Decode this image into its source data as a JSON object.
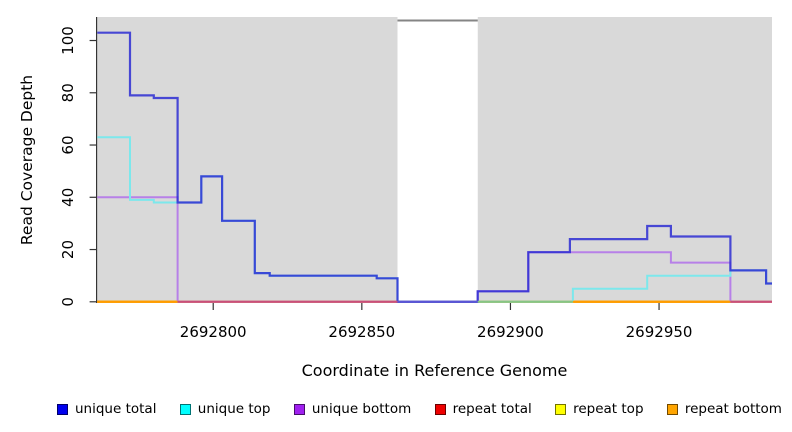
{
  "chart_data": {
    "type": "step-line",
    "title": "",
    "xlabel": "Coordinate in Reference Genome",
    "ylabel": "Read Coverage Depth",
    "xlim": [
      2692761,
      2692988
    ],
    "ylim": [
      0,
      109
    ],
    "xticks": [
      2692800,
      2692850,
      2692900,
      2692950
    ],
    "yticks": [
      0,
      20,
      40,
      60,
      80,
      100
    ],
    "plot_bg": "#d9d9d9",
    "grid": false,
    "legend_position": "bottom",
    "gap_region": {
      "x0": 2692862,
      "x1": 2692889,
      "fill": "#ffffff",
      "top_line_color": "#858585"
    },
    "series": [
      {
        "name": "repeat total",
        "legend_color": "#ee0000",
        "line_color": "#ee0000",
        "x_end": 2692988,
        "steps": [
          [
            2692761,
            0
          ]
        ]
      },
      {
        "name": "repeat top",
        "legend_color": "#ffff00",
        "line_color": "#ffff00",
        "x_end": 2692988,
        "steps": [
          [
            2692761,
            0
          ]
        ]
      },
      {
        "name": "repeat bottom",
        "legend_color": "#ffa500",
        "line_color": "#ff9c00",
        "x_end": 2692988,
        "steps": [
          [
            2692761,
            0
          ]
        ]
      },
      {
        "name": "unique bottom",
        "legend_color": "#a020f0",
        "line_color": "#b780e8",
        "x_end": 2692988,
        "steps": [
          [
            2692761,
            40
          ],
          [
            2692788,
            0
          ],
          [
            2692889,
            4
          ],
          [
            2692906,
            19
          ],
          [
            2692954,
            15
          ],
          [
            2692974,
            0
          ]
        ]
      },
      {
        "name": "unique top",
        "legend_color": "#00ffff",
        "line_color": "#7ce8ec",
        "x_end": 2692988,
        "steps": [
          [
            2692761,
            63
          ],
          [
            2692772,
            39
          ],
          [
            2692780,
            38
          ],
          [
            2692796,
            48
          ],
          [
            2692803,
            31
          ],
          [
            2692814,
            11
          ],
          [
            2692819,
            10
          ],
          [
            2692855,
            9
          ],
          [
            2692862,
            0
          ],
          [
            2692921,
            5
          ],
          [
            2692946,
            10
          ],
          [
            2692974,
            12
          ],
          [
            2692986,
            7
          ]
        ]
      },
      {
        "name": "unique total",
        "legend_color": "#0000ee",
        "line_color": "#2d2dd2",
        "opacity": 0.85,
        "width": 2.2,
        "x_end": 2692988,
        "steps": [
          [
            2692761,
            103
          ],
          [
            2692772,
            79
          ],
          [
            2692780,
            78
          ],
          [
            2692788,
            38
          ],
          [
            2692796,
            48
          ],
          [
            2692803,
            31
          ],
          [
            2692814,
            11
          ],
          [
            2692819,
            10
          ],
          [
            2692855,
            9
          ],
          [
            2692862,
            0
          ],
          [
            2692889,
            4
          ],
          [
            2692906,
            19
          ],
          [
            2692920,
            24
          ],
          [
            2692946,
            29
          ],
          [
            2692954,
            25
          ],
          [
            2692974,
            12
          ],
          [
            2692986,
            7
          ]
        ]
      }
    ],
    "baseline_segments": [
      {
        "x0": 2692761,
        "x1": 2692788,
        "color": "#ff9c00"
      },
      {
        "x0": 2692788,
        "x1": 2692862,
        "color": "#c94f7c"
      },
      {
        "x0": 2692862,
        "x1": 2692889,
        "color": "#5b55d6"
      },
      {
        "x0": 2692889,
        "x1": 2692921,
        "color": "#86c586"
      },
      {
        "x0": 2692921,
        "x1": 2692974,
        "color": "#ff9c00"
      },
      {
        "x0": 2692974,
        "x1": 2692988,
        "color": "#c94f7c"
      }
    ],
    "legend": [
      {
        "label": "unique total",
        "color": "#0000ee"
      },
      {
        "label": "unique top",
        "color": "#00ffff"
      },
      {
        "label": "unique bottom",
        "color": "#a020f0"
      },
      {
        "label": "repeat total",
        "color": "#ee0000"
      },
      {
        "label": "repeat top",
        "color": "#ffff00"
      },
      {
        "label": "repeat bottom",
        "color": "#ffa500"
      }
    ]
  }
}
